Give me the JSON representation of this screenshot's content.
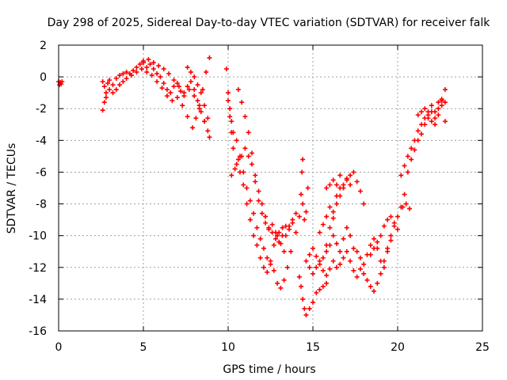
{
  "chart_data": {
    "type": "scatter",
    "title": "Day 298 of 2025, Sidereal Day-to-day VTEC variation (SDTVAR) for receiver falk",
    "xlabel": "GPS time / hours",
    "ylabel": "SDTVAR / TECUs",
    "xlim": [
      0,
      25
    ],
    "ylim": [
      -16,
      2
    ],
    "xticks": [
      "0",
      "5",
      "10",
      "15",
      "20",
      "25"
    ],
    "yticks": [
      "2",
      "0",
      "-2",
      "-4",
      "-6",
      "-8",
      "-10",
      "-12",
      "-14",
      "-16"
    ],
    "grid": true,
    "marker": "+",
    "color": "#ff0000",
    "series": [
      {
        "values": [
          [
            0.0,
            -0.3
          ],
          [
            0.05,
            -0.5
          ],
          [
            0.1,
            -0.35
          ],
          [
            0.15,
            -0.45
          ],
          [
            0.2,
            -0.3
          ],
          [
            2.6,
            -0.3
          ],
          [
            2.7,
            -0.6
          ],
          [
            2.8,
            -1.0
          ],
          [
            2.9,
            -0.4
          ],
          [
            3.0,
            -0.2
          ],
          [
            3.2,
            -0.5
          ],
          [
            3.4,
            -0.1
          ],
          [
            3.6,
            0.1
          ],
          [
            3.8,
            0.2
          ],
          [
            4.0,
            0.3
          ],
          [
            4.2,
            0.2
          ],
          [
            4.4,
            0.4
          ],
          [
            4.6,
            0.6
          ],
          [
            4.8,
            0.8
          ],
          [
            5.0,
            0.9
          ],
          [
            5.2,
            0.6
          ],
          [
            5.4,
            0.8
          ],
          [
            5.6,
            0.5
          ],
          [
            5.8,
            0.2
          ],
          [
            6.0,
            0.0
          ],
          [
            6.2,
            -0.4
          ],
          [
            6.4,
            -0.8
          ],
          [
            6.6,
            -1.0
          ],
          [
            6.8,
            -0.6
          ],
          [
            7.0,
            -0.4
          ],
          [
            7.2,
            -0.9
          ],
          [
            7.4,
            -1.2
          ],
          [
            7.6,
            -0.6
          ],
          [
            7.8,
            -0.3
          ],
          [
            8.0,
            -0.8
          ],
          [
            8.2,
            -1.5
          ],
          [
            8.4,
            -2.2
          ],
          [
            8.6,
            -2.8
          ],
          [
            8.8,
            -3.4
          ],
          [
            2.6,
            -2.1
          ],
          [
            2.7,
            -1.6
          ],
          [
            2.8,
            -1.3
          ],
          [
            3.0,
            -0.8
          ],
          [
            3.2,
            -1.0
          ],
          [
            3.4,
            -0.8
          ],
          [
            3.6,
            -0.5
          ],
          [
            3.8,
            -0.3
          ],
          [
            4.0,
            -0.1
          ],
          [
            4.3,
            0.1
          ],
          [
            4.6,
            0.3
          ],
          [
            4.9,
            0.5
          ],
          [
            5.2,
            0.3
          ],
          [
            5.5,
            0.1
          ],
          [
            5.8,
            -0.3
          ],
          [
            6.1,
            -0.7
          ],
          [
            6.4,
            -1.2
          ],
          [
            6.7,
            -1.5
          ],
          [
            7.0,
            -1.3
          ],
          [
            7.3,
            -1.8
          ],
          [
            7.6,
            -2.5
          ],
          [
            7.9,
            -3.2
          ],
          [
            8.1,
            -2.6
          ],
          [
            8.3,
            -1.8
          ],
          [
            8.5,
            -0.8
          ],
          [
            8.7,
            0.3
          ],
          [
            8.9,
            1.2
          ],
          [
            5.0,
            1.0
          ],
          [
            5.3,
            1.1
          ],
          [
            5.6,
            0.9
          ],
          [
            5.9,
            0.7
          ],
          [
            6.2,
            0.5
          ],
          [
            6.5,
            0.2
          ],
          [
            6.8,
            -0.2
          ],
          [
            7.1,
            -0.6
          ],
          [
            7.4,
            -1.0
          ],
          [
            7.7,
            -0.8
          ],
          [
            8.0,
            -1.2
          ],
          [
            8.3,
            -2.0
          ],
          [
            8.6,
            -2.8
          ],
          [
            8.9,
            -3.8
          ],
          [
            7.6,
            0.6
          ],
          [
            7.8,
            0.3
          ],
          [
            8.0,
            0.0
          ],
          [
            8.2,
            -0.5
          ],
          [
            8.4,
            -1.0
          ],
          [
            8.6,
            -1.8
          ],
          [
            8.8,
            -2.6
          ],
          [
            9.9,
            0.5
          ],
          [
            10.0,
            -1.0
          ],
          [
            10.1,
            -2.0
          ],
          [
            10.2,
            -2.8
          ],
          [
            10.3,
            -3.5
          ],
          [
            10.5,
            -4.0
          ],
          [
            10.7,
            -5.0
          ],
          [
            10.9,
            -6.0
          ],
          [
            11.1,
            -7.0
          ],
          [
            11.3,
            -7.8
          ],
          [
            11.5,
            -8.6
          ],
          [
            11.7,
            -9.5
          ],
          [
            11.9,
            -10.2
          ],
          [
            12.1,
            -10.8
          ],
          [
            12.3,
            -11.4
          ],
          [
            12.5,
            -11.8
          ],
          [
            12.7,
            -12.2
          ],
          [
            12.9,
            -13.0
          ],
          [
            13.1,
            -13.3
          ],
          [
            13.3,
            -12.8
          ],
          [
            13.5,
            -12.0
          ],
          [
            13.7,
            -11.0
          ],
          [
            10.0,
            -1.5
          ],
          [
            10.1,
            -2.5
          ],
          [
            10.2,
            -3.5
          ],
          [
            10.3,
            -4.5
          ],
          [
            10.5,
            -5.5
          ],
          [
            10.7,
            -6.0
          ],
          [
            10.9,
            -6.8
          ],
          [
            11.1,
            -8.0
          ],
          [
            11.3,
            -9.0
          ],
          [
            11.5,
            -10.0
          ],
          [
            11.7,
            -10.6
          ],
          [
            11.9,
            -11.4
          ],
          [
            12.1,
            -12.0
          ],
          [
            12.3,
            -12.3
          ],
          [
            12.5,
            -11.6
          ],
          [
            12.7,
            -10.6
          ],
          [
            12.9,
            -10.0
          ],
          [
            13.1,
            -10.5
          ],
          [
            13.3,
            -11.0
          ],
          [
            10.6,
            -0.8
          ],
          [
            10.8,
            -1.6
          ],
          [
            11.0,
            -2.5
          ],
          [
            11.2,
            -3.5
          ],
          [
            11.4,
            -4.8
          ],
          [
            11.6,
            -6.2
          ],
          [
            11.8,
            -7.2
          ],
          [
            12.0,
            -8.0
          ],
          [
            12.2,
            -8.8
          ],
          [
            12.4,
            -9.5
          ],
          [
            12.6,
            -9.8
          ],
          [
            12.8,
            -10.2
          ],
          [
            13.0,
            -9.8
          ],
          [
            13.2,
            -9.5
          ],
          [
            13.4,
            -10.0
          ],
          [
            13.6,
            -9.4
          ],
          [
            13.8,
            -9.0
          ],
          [
            14.0,
            -8.6
          ],
          [
            10.2,
            -6.2
          ],
          [
            10.4,
            -5.8
          ],
          [
            10.6,
            -5.2
          ],
          [
            10.8,
            -5.0
          ],
          [
            11.0,
            -4.5
          ],
          [
            11.2,
            -5.0
          ],
          [
            11.4,
            -5.5
          ],
          [
            11.6,
            -6.6
          ],
          [
            11.8,
            -7.8
          ],
          [
            12.0,
            -8.6
          ],
          [
            12.2,
            -9.2
          ],
          [
            12.4,
            -9.6
          ],
          [
            12.6,
            -9.3
          ],
          [
            12.8,
            -9.8
          ],
          [
            13.0,
            -10.4
          ],
          [
            13.2,
            -10.0
          ],
          [
            13.4,
            -9.4
          ],
          [
            13.6,
            -9.6
          ],
          [
            13.8,
            -9.2
          ],
          [
            14.0,
            -9.8
          ],
          [
            14.2,
            -8.8
          ],
          [
            14.3,
            -7.4
          ],
          [
            14.35,
            -6.0
          ],
          [
            14.4,
            -5.2
          ],
          [
            14.4,
            -8.0
          ],
          [
            14.5,
            -9.0
          ],
          [
            14.6,
            -8.5
          ],
          [
            14.7,
            -7.0
          ],
          [
            14.2,
            -12.6
          ],
          [
            14.3,
            -13.2
          ],
          [
            14.4,
            -14.0
          ],
          [
            14.5,
            -14.6
          ],
          [
            14.6,
            -15.0
          ],
          [
            14.8,
            -14.6
          ],
          [
            15.0,
            -14.2
          ],
          [
            15.2,
            -13.6
          ],
          [
            15.4,
            -13.4
          ],
          [
            15.6,
            -13.2
          ],
          [
            15.8,
            -13.0
          ],
          [
            14.6,
            -11.6
          ],
          [
            14.8,
            -11.2
          ],
          [
            15.0,
            -10.8
          ],
          [
            15.2,
            -11.3
          ],
          [
            15.4,
            -11.8
          ],
          [
            15.6,
            -11.4
          ],
          [
            15.8,
            -11.0
          ],
          [
            16.0,
            -10.6
          ],
          [
            16.2,
            -10.0
          ],
          [
            16.4,
            -10.5
          ],
          [
            16.6,
            -11.0
          ],
          [
            16.8,
            -10.2
          ],
          [
            17.0,
            -9.5
          ],
          [
            17.2,
            -10.0
          ],
          [
            17.4,
            -10.8
          ],
          [
            17.6,
            -11.0
          ],
          [
            17.8,
            -11.4
          ],
          [
            18.0,
            -11.8
          ],
          [
            18.2,
            -11.2
          ],
          [
            18.4,
            -10.6
          ],
          [
            18.6,
            -10.2
          ],
          [
            18.8,
            -10.8
          ],
          [
            19.0,
            -11.6
          ],
          [
            19.2,
            -12.0
          ],
          [
            19.4,
            -11.0
          ],
          [
            19.6,
            -10.3
          ],
          [
            15.4,
            -9.8
          ],
          [
            15.6,
            -9.3
          ],
          [
            15.8,
            -8.8
          ],
          [
            16.0,
            -8.2
          ],
          [
            16.2,
            -8.5
          ],
          [
            16.4,
            -8.0
          ],
          [
            16.6,
            -7.5
          ],
          [
            16.8,
            -7.0
          ],
          [
            17.0,
            -6.4
          ],
          [
            17.2,
            -6.2
          ],
          [
            17.4,
            -6.0
          ],
          [
            17.6,
            -6.6
          ],
          [
            17.8,
            -7.2
          ],
          [
            18.0,
            -8.0
          ],
          [
            15.8,
            -10.6
          ],
          [
            16.0,
            -9.5
          ],
          [
            16.2,
            -8.9
          ],
          [
            16.4,
            -7.5
          ],
          [
            16.6,
            -7.0
          ],
          [
            16.8,
            -6.8
          ],
          [
            17.0,
            -6.5
          ],
          [
            17.2,
            -6.8
          ],
          [
            15.8,
            -7.0
          ],
          [
            16.0,
            -6.8
          ],
          [
            16.2,
            -6.5
          ],
          [
            16.4,
            -6.8
          ],
          [
            16.6,
            -6.2
          ],
          [
            14.8,
            -12.0
          ],
          [
            15.0,
            -12.4
          ],
          [
            15.2,
            -12.0
          ],
          [
            15.4,
            -11.6
          ],
          [
            15.6,
            -12.2
          ],
          [
            15.8,
            -12.5
          ],
          [
            16.0,
            -12.1
          ],
          [
            16.2,
            -11.6
          ],
          [
            16.4,
            -12.0
          ],
          [
            16.6,
            -11.8
          ],
          [
            16.8,
            -11.4
          ],
          [
            17.0,
            -11.0
          ],
          [
            17.2,
            -11.6
          ],
          [
            17.4,
            -12.2
          ],
          [
            17.6,
            -12.6
          ],
          [
            17.8,
            -12.1
          ],
          [
            18.0,
            -12.4
          ],
          [
            18.2,
            -12.8
          ],
          [
            18.4,
            -13.2
          ],
          [
            18.6,
            -13.5
          ],
          [
            18.8,
            -13.0
          ],
          [
            19.0,
            -12.4
          ],
          [
            19.2,
            -11.6
          ],
          [
            19.4,
            -10.8
          ],
          [
            19.6,
            -10.0
          ],
          [
            19.8,
            -9.4
          ],
          [
            20.0,
            -8.8
          ],
          [
            20.2,
            -8.2
          ],
          [
            20.4,
            -7.4
          ],
          [
            18.4,
            -11.2
          ],
          [
            18.6,
            -10.8
          ],
          [
            18.8,
            -10.4
          ],
          [
            19.0,
            -10.0
          ],
          [
            19.2,
            -9.4
          ],
          [
            19.4,
            -9.0
          ],
          [
            19.6,
            -8.8
          ],
          [
            19.8,
            -9.2
          ],
          [
            20.0,
            -9.6
          ],
          [
            20.2,
            -6.2
          ],
          [
            20.4,
            -5.6
          ],
          [
            20.6,
            -5.0
          ],
          [
            20.8,
            -4.5
          ],
          [
            21.0,
            -4.0
          ],
          [
            21.2,
            -3.4
          ],
          [
            21.4,
            -3.0
          ],
          [
            21.6,
            -2.6
          ],
          [
            21.8,
            -2.4
          ],
          [
            22.0,
            -2.2
          ],
          [
            22.2,
            -2.6
          ],
          [
            22.4,
            -2.0
          ],
          [
            22.6,
            -1.5
          ],
          [
            22.8,
            -0.8
          ],
          [
            20.6,
            -6.0
          ],
          [
            20.8,
            -5.2
          ],
          [
            21.0,
            -4.6
          ],
          [
            21.2,
            -4.0
          ],
          [
            21.4,
            -3.6
          ],
          [
            21.6,
            -3.0
          ],
          [
            21.8,
            -2.6
          ],
          [
            22.0,
            -2.8
          ],
          [
            22.2,
            -3.0
          ],
          [
            22.4,
            -2.4
          ],
          [
            22.6,
            -1.8
          ],
          [
            22.8,
            -2.8
          ],
          [
            20.3,
            -8.2
          ],
          [
            20.5,
            -8.0
          ],
          [
            20.7,
            -8.3
          ],
          [
            21.2,
            -2.4
          ],
          [
            21.4,
            -2.2
          ],
          [
            21.6,
            -2.0
          ],
          [
            21.8,
            -2.2
          ],
          [
            22.0,
            -1.8
          ],
          [
            22.2,
            -2.2
          ],
          [
            22.4,
            -1.6
          ],
          [
            22.6,
            -1.4
          ],
          [
            22.8,
            -1.6
          ]
        ]
      }
    ]
  }
}
